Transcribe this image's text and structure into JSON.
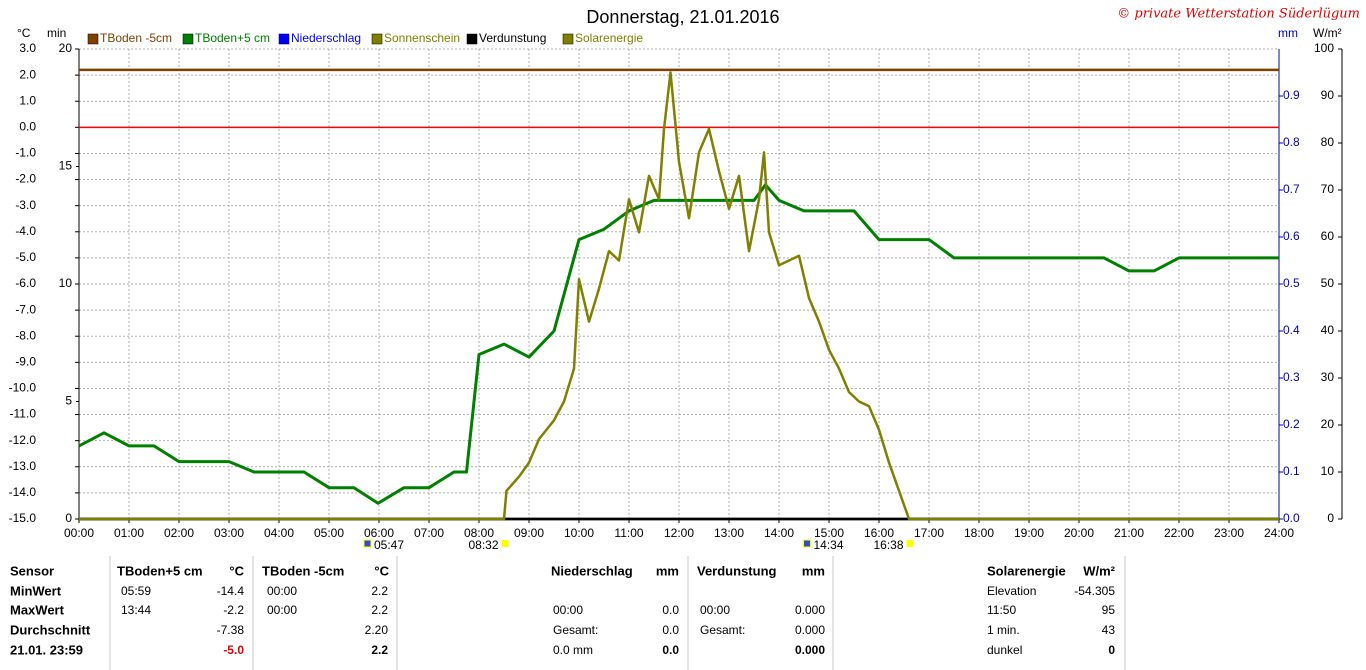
{
  "chart_data": {
    "type": "line",
    "title": "Donnerstag, 21.01.2016",
    "copyright": "© private Wetterstation Süderlügum",
    "ylabel": "°C",
    "y3label": "min",
    "y2label": "mm",
    "y4label": "W/m²",
    "xlim": [
      0,
      24
    ],
    "xticks": [
      {
        "value": 0,
        "label": "00:00"
      },
      {
        "value": 1,
        "label": "01:00"
      },
      {
        "value": 2,
        "label": "02:00"
      },
      {
        "value": 3,
        "label": "03:00"
      },
      {
        "value": 4,
        "label": "04:00"
      },
      {
        "value": 5,
        "label": "05:00"
      },
      {
        "value": 6,
        "label": "06:00"
      },
      {
        "value": 7,
        "label": "07:00"
      },
      {
        "value": 8,
        "label": "08:00"
      },
      {
        "value": 9,
        "label": "09:00"
      },
      {
        "value": 10,
        "label": "10:00"
      },
      {
        "value": 11,
        "label": "11:00"
      },
      {
        "value": 12,
        "label": "12:00"
      },
      {
        "value": 13,
        "label": "13:00"
      },
      {
        "value": 14,
        "label": "14:00"
      },
      {
        "value": 15,
        "label": "15:00"
      },
      {
        "value": 16,
        "label": "16:00"
      },
      {
        "value": 17,
        "label": "17:00"
      },
      {
        "value": 18,
        "label": "18:00"
      },
      {
        "value": 19,
        "label": "19:00"
      },
      {
        "value": 20,
        "label": "20:00"
      },
      {
        "value": 21,
        "label": "21:00"
      },
      {
        "value": 22,
        "label": "22:00"
      },
      {
        "value": 23,
        "label": "23:00"
      },
      {
        "value": 24,
        "label": "24:00"
      }
    ],
    "ylim": [
      -15,
      3
    ],
    "yticks": [
      {
        "value": -15,
        "label": "-15.0"
      },
      {
        "value": -14,
        "label": "-14.0"
      },
      {
        "value": -13,
        "label": "-13.0"
      },
      {
        "value": -12,
        "label": "-12.0"
      },
      {
        "value": -11,
        "label": "-11.0"
      },
      {
        "value": -10,
        "label": "-10.0"
      },
      {
        "value": -9,
        "label": "-9.0"
      },
      {
        "value": -8,
        "label": "-8.0"
      },
      {
        "value": -7,
        "label": "-7.0"
      },
      {
        "value": -6,
        "label": "-6.0"
      },
      {
        "value": -5,
        "label": "-5.0"
      },
      {
        "value": -4,
        "label": "-4.0"
      },
      {
        "value": -3,
        "label": "-3.0"
      },
      {
        "value": -2,
        "label": "-2.0"
      },
      {
        "value": -1,
        "label": "-1.0"
      },
      {
        "value": 0,
        "label": "0.0"
      },
      {
        "value": 1,
        "label": "1.0"
      },
      {
        "value": 2,
        "label": "2.0"
      },
      {
        "value": 3,
        "label": "3.0"
      }
    ],
    "y3lim": [
      0,
      20
    ],
    "y3ticks": [
      0,
      5,
      10,
      15,
      20
    ],
    "y2lim": [
      0,
      1
    ],
    "y2ticks": [
      {
        "value": 0,
        "label": "0.0"
      },
      0.1,
      0.2,
      0.3,
      0.4,
      0.5,
      0.6,
      0.7,
      0.8,
      0.9
    ],
    "y4lim": [
      0,
      100
    ],
    "y4ticks": [
      0,
      10,
      20,
      30,
      40,
      50,
      60,
      70,
      80,
      90,
      100
    ],
    "grid": true,
    "reference_line": {
      "value": 0,
      "color": "#ff0000"
    },
    "series": [
      {
        "name": "TBoden -5cm",
        "color": "#804000",
        "x": [
          0,
          24
        ],
        "values": [
          2.2,
          2.2
        ]
      },
      {
        "name": "TBoden+5 cm",
        "color": "#008000",
        "x": [
          0,
          0.5,
          1,
          1.5,
          2,
          2.5,
          3,
          3.5,
          4,
          4.5,
          5,
          5.5,
          5.98,
          6.5,
          7,
          7.5,
          7.75,
          8,
          8.5,
          9,
          9.5,
          10,
          10.5,
          11,
          11.5,
          12,
          12.5,
          13,
          13.5,
          13.73,
          14,
          14.5,
          15,
          15.5,
          16,
          16.5,
          17,
          17.5,
          18,
          18.5,
          19,
          19.5,
          20,
          20.5,
          21,
          21.5,
          22,
          22.5,
          23,
          23.5,
          24
        ],
        "values": [
          -12.2,
          -11.7,
          -12.2,
          -12.2,
          -12.8,
          -12.8,
          -12.8,
          -13.2,
          -13.2,
          -13.2,
          -13.8,
          -13.8,
          -14.4,
          -13.8,
          -13.8,
          -13.2,
          -13.2,
          -8.7,
          -8.3,
          -8.8,
          -7.8,
          -4.3,
          -3.9,
          -3.2,
          -2.8,
          -2.8,
          -2.8,
          -2.8,
          -2.8,
          -2.2,
          -2.8,
          -3.2,
          -3.2,
          -3.2,
          -4.3,
          -4.3,
          -4.3,
          -5,
          -5,
          -5,
          -5,
          -5,
          -5,
          -5,
          -5.5,
          -5.5,
          -5,
          -5,
          -5,
          -5,
          -5
        ]
      },
      {
        "name": "Niederschlag",
        "color": "#0000ff",
        "axis": "y2",
        "x": [
          0,
          24
        ],
        "values": [
          0,
          0
        ]
      },
      {
        "name": "Sonnenschein",
        "color": "#808000",
        "axis": "y3",
        "x": [
          0,
          24
        ],
        "values": [
          0,
          0
        ]
      },
      {
        "name": "Verdunstung",
        "color": "#000000",
        "axis": "y2",
        "x": [
          0,
          24
        ],
        "values": [
          0,
          0
        ]
      },
      {
        "name": "Solarenergie",
        "color": "#808000",
        "axis": "y4",
        "x": [
          0,
          8.5,
          8.55,
          8.8,
          9,
          9.2,
          9.5,
          9.7,
          9.9,
          10,
          10.2,
          10.4,
          10.6,
          10.8,
          11,
          11.2,
          11.4,
          11.6,
          11.7,
          11.83,
          12,
          12.2,
          12.4,
          12.6,
          12.8,
          13,
          13.2,
          13.4,
          13.6,
          13.7,
          13.8,
          14,
          14.2,
          14.4,
          14.6,
          14.8,
          15,
          15.2,
          15.4,
          15.6,
          15.8,
          16,
          16.2,
          16.4,
          16.6,
          24
        ],
        "values": [
          0,
          0,
          6,
          9,
          12,
          17,
          21,
          25,
          32,
          51,
          42,
          49,
          57,
          55,
          68,
          61,
          73,
          68,
          83,
          95,
          76,
          64,
          78,
          83,
          74,
          66,
          73,
          57,
          68,
          78,
          61,
          54,
          55,
          56,
          47,
          42,
          36,
          32,
          27,
          25,
          24,
          19,
          12,
          6,
          0,
          0
        ]
      }
    ],
    "annotations": [
      {
        "x": 5.78,
        "label": "05:47"
      },
      {
        "x": 8.53,
        "label": "08:32"
      },
      {
        "x": 14.57,
        "label": "14:34"
      },
      {
        "x": 16.63,
        "label": "16:38"
      }
    ]
  },
  "table": {
    "header": [
      "Sensor",
      "TBoden+5 cm",
      "°C",
      "TBoden -5cm",
      "°C",
      "Niederschlag",
      "mm",
      "Verdunstung",
      "mm",
      "Solarenergie",
      "W/m²"
    ],
    "rows": [
      [
        "MinWert",
        "05:59",
        "-14.4",
        "00:00",
        "2.2",
        null,
        null,
        null,
        null,
        "Elevation",
        "-54.305"
      ],
      [
        "MaxWert",
        "13:44",
        "-2.2",
        "00:00",
        "2.2",
        "00:00",
        "0.0",
        "00:00",
        "0.000",
        "11:50",
        "95"
      ],
      [
        "Durchschnitt",
        null,
        "-7.38",
        null,
        "2.20",
        "Gesamt:",
        "0.0",
        "Gesamt:",
        "0.000",
        "1 min.",
        "43"
      ],
      [
        "21.01. 23:59",
        null,
        "-5.0",
        null,
        "2.2",
        "0.0 mm",
        "0.0",
        null,
        "0.000",
        "dunkel",
        "0"
      ]
    ]
  }
}
